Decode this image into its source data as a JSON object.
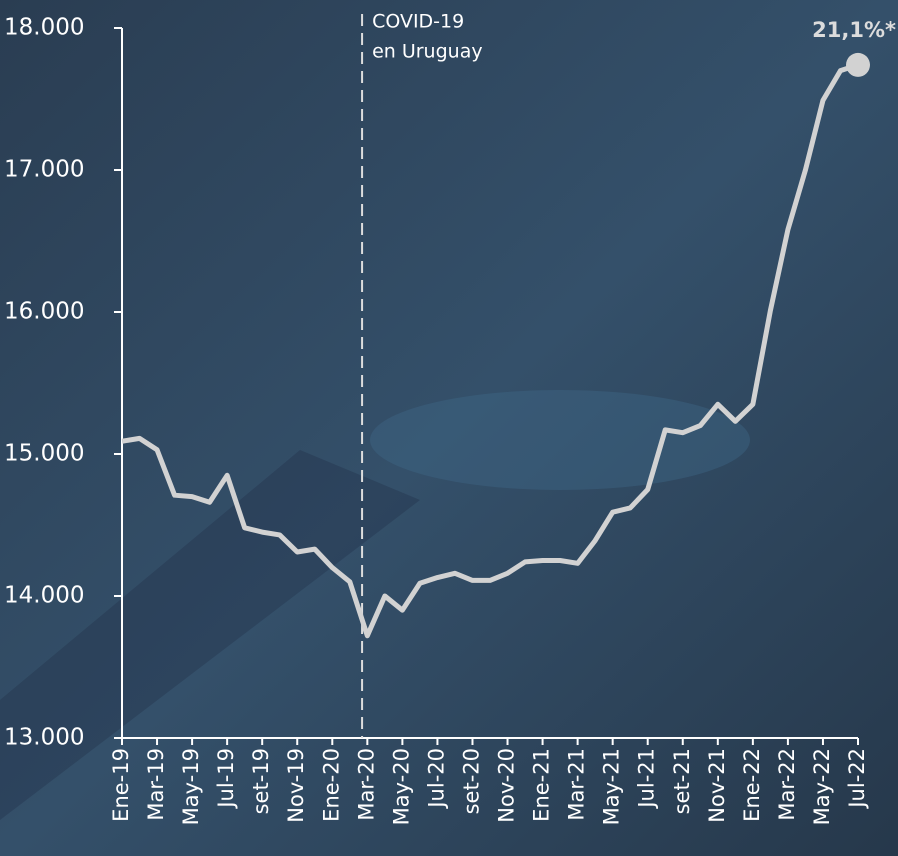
{
  "chart_data": {
    "type": "line",
    "categories": [
      "Ene-19",
      null,
      "Mar-19",
      null,
      "May-19",
      null,
      "Jul-19",
      null,
      "set-19",
      null,
      "Nov-19",
      null,
      "Ene-20",
      null,
      "Mar-20",
      null,
      "May-20",
      null,
      "Jul-20",
      null,
      "set-20",
      null,
      "Nov-20",
      null,
      "Ene-21",
      null,
      "Mar-21",
      null,
      "May-21",
      null,
      "Jul-21",
      null,
      "set-21",
      null,
      "Nov-21",
      null,
      "Ene-22",
      null,
      "Mar-22",
      null,
      "May-22",
      null,
      "Jul-22"
    ],
    "values": [
      15090,
      15110,
      15030,
      14710,
      14700,
      14660,
      14850,
      14480,
      14450,
      14430,
      14310,
      14330,
      14200,
      14100,
      13720,
      14000,
      13900,
      14090,
      14130,
      14160,
      14110,
      14110,
      14160,
      14240,
      14250,
      14250,
      14230,
      14390,
      14590,
      14620,
      14750,
      15170,
      15150,
      15200,
      15350,
      15230,
      15350,
      16010,
      16580,
      17000,
      17490,
      17700,
      17740
    ],
    "color": "#d2d2d2",
    "ylim": [
      13000,
      18000
    ],
    "yticks": [
      {
        "value": 13000,
        "label": "13.000"
      },
      {
        "value": 14000,
        "label": "14.000"
      },
      {
        "value": 15000,
        "label": "15.000"
      },
      {
        "value": 16000,
        "label": "16.000"
      },
      {
        "value": 17000,
        "label": "17.000"
      },
      {
        "value": 18000,
        "label": "18.000"
      }
    ],
    "covid_annotation": [
      "COVID-19",
      "en Uruguay"
    ],
    "end_label": "21,1%*"
  }
}
